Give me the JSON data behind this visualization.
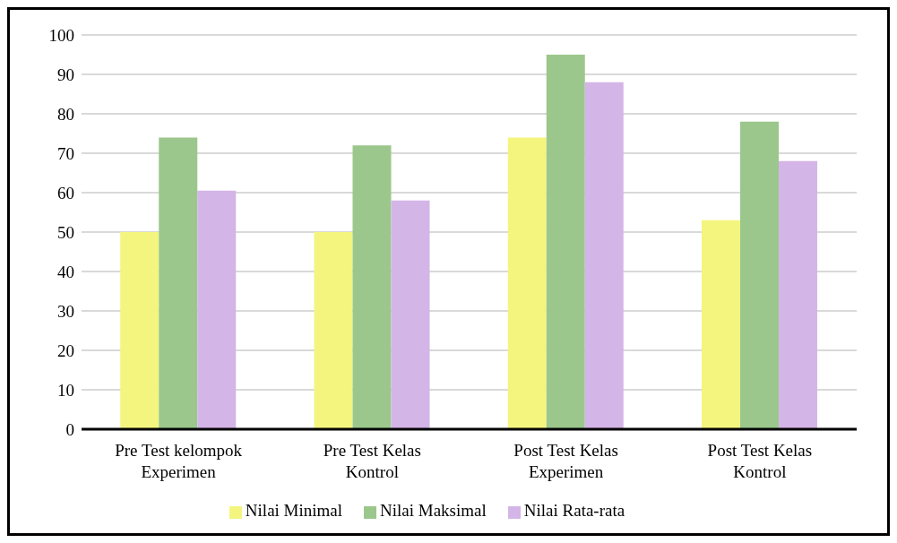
{
  "chart_data": {
    "type": "bar",
    "categories": [
      "Pre Test kelompok Experimen",
      "Pre Test Kelas Kontrol",
      "Post Test Kelas Experimen",
      "Post Test Kelas Kontrol"
    ],
    "series": [
      {
        "name": "Nilai Minimal",
        "color": "#f4f57f",
        "values": [
          50,
          50,
          74,
          53
        ]
      },
      {
        "name": "Nilai Maksimal",
        "color": "#9bc78c",
        "values": [
          74,
          72,
          95,
          78
        ]
      },
      {
        "name": "Nilai Rata-rata",
        "color": "#d4b5e7",
        "values": [
          60.5,
          58,
          88,
          68
        ]
      }
    ],
    "ylim": [
      0,
      100
    ],
    "yticks": [
      0,
      10,
      20,
      30,
      40,
      50,
      60,
      70,
      80,
      90,
      100
    ],
    "grid": "y",
    "legend": "bottom"
  }
}
